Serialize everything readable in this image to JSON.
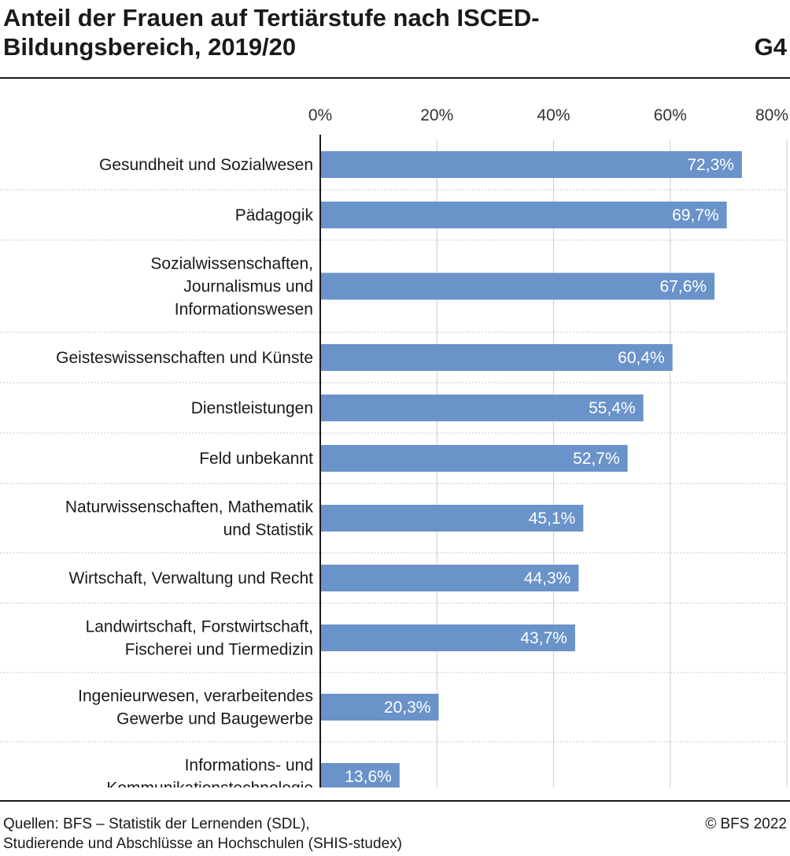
{
  "header": {
    "title_lines": [
      "Anteil der Frauen auf Tertiärstufe nach ISCED-",
      "Bildungsbereich, 2019/20"
    ],
    "graphic_number": "G4"
  },
  "footer": {
    "source_lines": [
      "Quellen: BFS – Statistik der Lernenden (SDL),",
      "Studierende und Abschlüsse an Hochschulen (SHIS-studex)"
    ],
    "copyright": "© BFS 2022"
  },
  "chart_data": {
    "type": "bar",
    "orientation": "horizontal",
    "xlim": [
      0,
      80
    ],
    "x_ticks": [
      0,
      20,
      40,
      60,
      80
    ],
    "x_tick_labels": [
      "0%",
      "20%",
      "40%",
      "60%",
      "80%"
    ],
    "x_axis_position": "top",
    "grid": true,
    "bar_color": "#6a93c9",
    "categories": [
      [
        "Gesundheit und Sozialwesen"
      ],
      [
        "Pädagogik"
      ],
      [
        "Sozialwissenschaften,",
        "Journalismus und",
        "Informationswesen"
      ],
      [
        "Geisteswissenschaften und Künste"
      ],
      [
        "Dienstleistungen"
      ],
      [
        "Feld unbekannt"
      ],
      [
        "Naturwissenschaften, Mathematik",
        "und Statistik"
      ],
      [
        "Wirtschaft, Verwaltung und Recht"
      ],
      [
        "Landwirtschaft, Forstwirtschaft,",
        "Fischerei und Tiermedizin"
      ],
      [
        "Ingenieurwesen, verarbeitendes",
        "Gewerbe und Baugewerbe"
      ],
      [
        "Informations- und",
        "Kommunikationstechnologie"
      ]
    ],
    "values": [
      72.3,
      69.7,
      67.6,
      60.4,
      55.4,
      52.7,
      45.1,
      44.3,
      43.7,
      20.3,
      13.6
    ],
    "value_labels": [
      "72,3%",
      "69,7%",
      "67,6%",
      "60,4%",
      "55,4%",
      "52,7%",
      "45,1%",
      "44,3%",
      "43,7%",
      "20,3%",
      "13,6%"
    ]
  }
}
